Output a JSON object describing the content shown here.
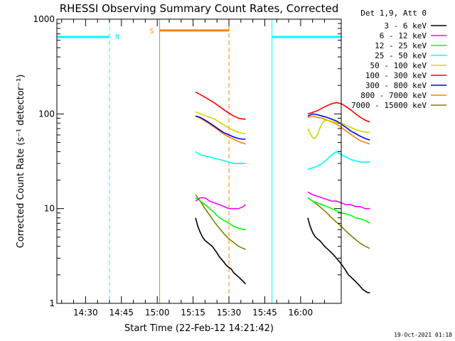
{
  "chart_data": {
    "type": "line",
    "title": "RHESSI Observing Summary Count Rates, Corrected",
    "xlabel": "Start Time (22-Feb-12 14:21:42)",
    "ylabel": "Corrected Count Rate (s⁻¹ detector⁻¹)",
    "yscale": "log",
    "ylim": [
      1,
      1000
    ],
    "yticks": [
      "1",
      "10",
      "100",
      "1000"
    ],
    "xlim_minutes": [
      -12,
      107
    ],
    "xticks": [
      "14:30",
      "14:45",
      "15:00",
      "15:15",
      "15:30",
      "15:45",
      "16:00"
    ],
    "xtick_minutes": [
      0,
      15,
      30,
      45,
      60,
      75,
      90
    ],
    "legend_title": "Det 1,9, Att 0",
    "legend_position": "outside-right",
    "series": [
      {
        "name": "3 - 6 keV",
        "color": "#000000",
        "segments": [
          {
            "x": [
              46,
              47,
              48,
              49,
              50,
              51,
              52,
              53,
              54,
              55,
              56,
              57,
              58,
              59,
              60,
              61,
              62,
              63,
              64,
              65,
              66,
              67
            ],
            "y": [
              8,
              6.5,
              5.6,
              5,
              4.6,
              4.4,
              4.2,
              4,
              3.7,
              3.4,
              3.1,
              2.9,
              2.7,
              2.5,
              2.4,
              2.3,
              2.1,
              2,
              1.9,
              1.8,
              1.7,
              1.6
            ]
          },
          {
            "x": [
              93,
              94,
              95,
              96,
              97,
              98,
              99,
              100,
              101,
              102,
              103,
              104,
              105,
              106,
              107,
              108,
              109,
              110,
              111,
              112,
              113,
              114,
              115,
              116,
              117,
              118,
              119
            ],
            "y": [
              8,
              6.5,
              5.6,
              5.1,
              4.8,
              4.6,
              4.3,
              4,
              3.8,
              3.6,
              3.4,
              3.2,
              3,
              2.8,
              2.6,
              2.4,
              2.2,
              2,
              1.9,
              1.8,
              1.7,
              1.6,
              1.5,
              1.4,
              1.35,
              1.3,
              1.3
            ]
          }
        ]
      },
      {
        "name": "6 - 12 keV",
        "color": "#ff00ff",
        "segments": [
          {
            "x": [
              46,
              48,
              50,
              52,
              54,
              56,
              58,
              60,
              62,
              64,
              66,
              67
            ],
            "y": [
              12,
              13,
              13,
              12,
              11.5,
              11,
              10.5,
              10,
              10,
              10,
              10.5,
              11
            ]
          },
          {
            "x": [
              93,
              95,
              97,
              99,
              101,
              103,
              105,
              107,
              109,
              111,
              113,
              115,
              117,
              119
            ],
            "y": [
              15,
              14,
              13.5,
              13,
              12.5,
              12,
              12,
              11.5,
              11,
              11,
              10.5,
              10.5,
              10,
              10
            ]
          }
        ]
      },
      {
        "name": "12 - 25 keV",
        "color": "#00ff00",
        "segments": [
          {
            "x": [
              46,
              48,
              50,
              52,
              54,
              56,
              58,
              60,
              62,
              64,
              66,
              67
            ],
            "y": [
              13,
              12,
              11,
              10,
              9,
              8,
              7.5,
              7,
              6.5,
              6.2,
              6,
              6
            ]
          },
          {
            "x": [
              93,
              95,
              97,
              99,
              101,
              103,
              105,
              107,
              109,
              111,
              113,
              115,
              117,
              119
            ],
            "y": [
              13,
              12,
              11.5,
              11,
              10.5,
              10,
              9.5,
              9,
              8.8,
              8.5,
              8,
              7.8,
              7.5,
              7
            ]
          }
        ]
      },
      {
        "name": "25 - 50 keV",
        "color": "#00ffff",
        "segments": [
          {
            "x": [
              46,
              48,
              50,
              52,
              54,
              56,
              58,
              60,
              62,
              64,
              66,
              67
            ],
            "y": [
              40,
              37,
              36,
              35,
              34,
              33,
              32,
              31,
              30,
              30,
              30,
              30
            ]
          },
          {
            "x": [
              93,
              95,
              97,
              99,
              101,
              103,
              105,
              107,
              109,
              111,
              113,
              115,
              117,
              119
            ],
            "y": [
              26,
              27,
              28,
              30,
              33,
              37,
              40,
              37,
              35,
              33,
              32,
              31,
              31,
              31
            ]
          }
        ]
      },
      {
        "name": "50 - 100 keV",
        "color": "#d4d400",
        "segments": [
          {
            "x": [
              46,
              48,
              50,
              52,
              54,
              56,
              58,
              60,
              62,
              64,
              66,
              67
            ],
            "y": [
              105,
              100,
              96,
              92,
              88,
              82,
              76,
              71,
              67,
              64,
              62,
              62
            ]
          },
          {
            "x": [
              93,
              94,
              95,
              96,
              97,
              98,
              99,
              100,
              102,
              104,
              106,
              108,
              110,
              112,
              114,
              116,
              118,
              119
            ],
            "y": [
              70,
              62,
              56,
              55,
              60,
              70,
              80,
              85,
              85,
              82,
              80,
              78,
              74,
              70,
              67,
              65,
              64,
              64
            ]
          }
        ]
      },
      {
        "name": "100 - 300 keV",
        "color": "#ff0000",
        "segments": [
          {
            "x": [
              46,
              48,
              50,
              52,
              54,
              56,
              58,
              60,
              62,
              64,
              66,
              67
            ],
            "y": [
              170,
              160,
              150,
              140,
              130,
              120,
              110,
              102,
              95,
              90,
              88,
              88
            ]
          },
          {
            "x": [
              93,
              95,
              97,
              99,
              101,
              103,
              105,
              107,
              109,
              111,
              113,
              115,
              117,
              119
            ],
            "y": [
              100,
              104,
              108,
              115,
              122,
              128,
              132,
              128,
              120,
              110,
              100,
              92,
              86,
              82
            ]
          }
        ]
      },
      {
        "name": "300 - 800 keV",
        "color": "#0000ff",
        "segments": [
          {
            "x": [
              46,
              48,
              50,
              52,
              54,
              56,
              58,
              60,
              62,
              64,
              66,
              67
            ],
            "y": [
              95,
              92,
              86,
              80,
              74,
              68,
              63,
              60,
              57,
              55,
              54,
              54
            ]
          },
          {
            "x": [
              93,
              95,
              97,
              99,
              101,
              103,
              105,
              107,
              109,
              111,
              113,
              115,
              117,
              119
            ],
            "y": [
              95,
              100,
              98,
              95,
              92,
              88,
              84,
              78,
              72,
              66,
              62,
              58,
              55,
              53
            ]
          }
        ]
      },
      {
        "name": "800 - 7000 keV",
        "color": "#ff8000",
        "segments": [
          {
            "x": [
              46,
              48,
              50,
              52,
              54,
              56,
              58,
              60,
              62,
              64,
              66,
              67
            ],
            "y": [
              95,
              90,
              84,
              78,
              72,
              66,
              61,
              57,
              54,
              51,
              49,
              48
            ]
          },
          {
            "x": [
              93,
              95,
              97,
              99,
              101,
              103,
              105,
              107,
              109,
              111,
              113,
              115,
              117,
              119
            ],
            "y": [
              92,
              95,
              92,
              90,
              86,
              82,
              78,
              72,
              66,
              61,
              56,
              52,
              50,
              48
            ]
          }
        ]
      },
      {
        "name": "7000 - 15000 keV",
        "color": "#808000",
        "segments": [
          {
            "x": [
              46,
              48,
              50,
              52,
              54,
              56,
              58,
              60,
              62,
              64,
              66,
              67
            ],
            "y": [
              14,
              12,
              10,
              8.5,
              7.2,
              6.2,
              5.4,
              4.8,
              4.4,
              4,
              3.8,
              3.7
            ]
          },
          {
            "x": [
              93,
              95,
              97,
              99,
              101,
              103,
              105,
              107,
              109,
              111,
              113,
              115,
              117,
              119
            ],
            "y": [
              13,
              12,
              11,
              10,
              9,
              8,
              7.2,
              6.5,
              5.8,
              5.2,
              4.7,
              4.3,
              4,
              3.8
            ]
          }
        ]
      }
    ],
    "annotations": {
      "night": [
        {
          "label": "N",
          "x_start": -12,
          "x_end": 10,
          "level": 650,
          "color": "#00ffff"
        },
        {
          "label": "",
          "x_start": 78,
          "x_end": 107,
          "level": 650,
          "color": "#00ffff"
        }
      ],
      "saa": [
        {
          "label": "S",
          "x_start": 31,
          "x_end": 60,
          "level": 760,
          "color": "#ff8000"
        }
      ],
      "dashed_lines": [
        {
          "x": 10,
          "color": "#00ffff"
        },
        {
          "x": 60,
          "color": "#ff8000"
        },
        {
          "x": 78,
          "color": "#00ffff"
        },
        {
          "x": 107,
          "color": "#00ffff"
        }
      ],
      "solid_lines": [
        {
          "x": -12,
          "color": "#00ffff"
        },
        {
          "x": 31,
          "color": "#ff8000"
        },
        {
          "x": 78,
          "color": "#00ffff"
        }
      ]
    },
    "timestamp": "19-Oct-2021 01:18"
  }
}
